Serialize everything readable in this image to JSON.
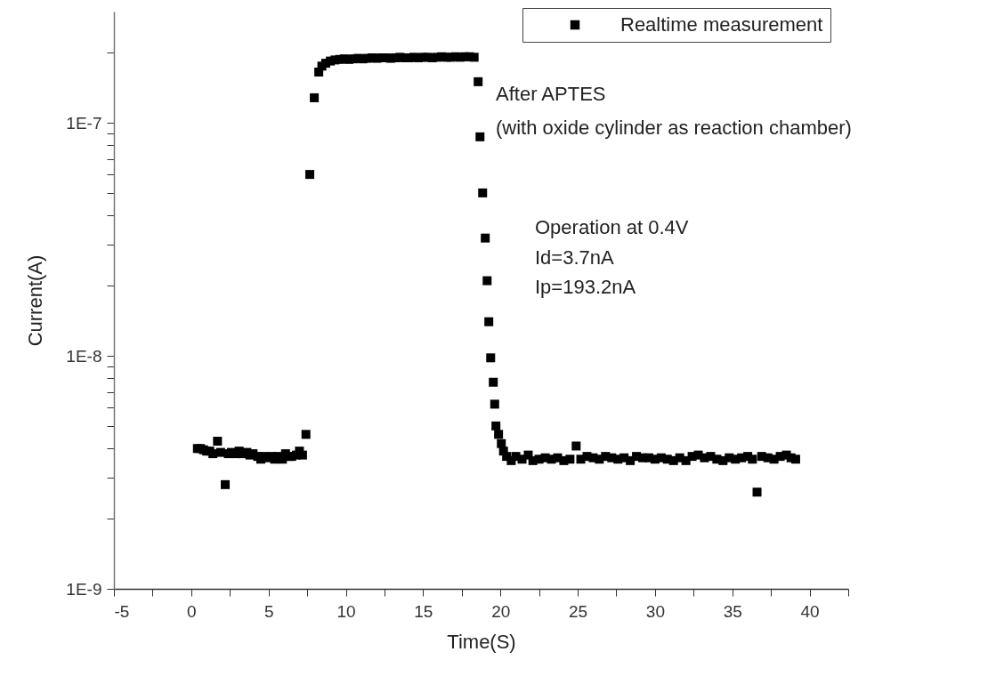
{
  "chart_data": {
    "type": "scatter",
    "xlabel": "Time(S)",
    "ylabel": "Current(A)",
    "log": "y",
    "grid": false,
    "legend": "top right",
    "marker": "square",
    "xlim": [
      -5,
      42.5
    ],
    "xticks": [
      -5,
      {
        "value": -2.5,
        "label": null
      },
      0,
      {
        "value": 2.5,
        "label": null
      },
      5,
      {
        "value": 7.5,
        "label": null
      },
      10,
      {
        "value": 12.5,
        "label": null
      },
      15,
      {
        "value": 17.5,
        "label": null
      },
      20,
      {
        "value": 22.5,
        "label": null
      },
      25,
      {
        "value": 27.5,
        "label": null
      },
      30,
      {
        "value": 32.5,
        "label": null
      },
      35,
      {
        "value": 37.5,
        "label": null
      },
      40,
      {
        "value": 42.5,
        "label": null
      }
    ],
    "ylim": [
      1e-09,
      3e-07
    ],
    "yticks": [
      {
        "value": 1e-09,
        "label": "1E-9"
      },
      {
        "value": 2e-09,
        "label": null
      },
      {
        "value": 3e-09,
        "label": null
      },
      {
        "value": 4e-09,
        "label": null
      },
      {
        "value": 5e-09,
        "label": null
      },
      {
        "value": 6e-09,
        "label": null
      },
      {
        "value": 7e-09,
        "label": null
      },
      {
        "value": 8e-09,
        "label": null
      },
      {
        "value": 9e-09,
        "label": null
      },
      {
        "value": 1e-08,
        "label": "1E-8"
      },
      {
        "value": 2e-08,
        "label": null
      },
      {
        "value": 3e-08,
        "label": null
      },
      {
        "value": 4e-08,
        "label": null
      },
      {
        "value": 5e-08,
        "label": null
      },
      {
        "value": 6e-08,
        "label": null
      },
      {
        "value": 7e-08,
        "label": null
      },
      {
        "value": 8e-08,
        "label": null
      },
      {
        "value": 9e-08,
        "label": null
      },
      {
        "value": 1e-07,
        "label": "1E-7"
      },
      {
        "value": 2e-07,
        "label": null
      }
    ],
    "annotations": [
      "After APTES",
      "(with oxide cylinder as reaction chamber)",
      "Operation at 0.4V",
      "Id=3.7nA",
      "Ip=193.2nA"
    ],
    "series": [
      {
        "name": "Realtime measurement",
        "color": "#000000",
        "x": [
          0.4,
          0.6,
          0.8,
          1.0,
          1.2,
          1.4,
          1.7,
          1.9,
          2.2,
          2.4,
          2.6,
          2.9,
          3.1,
          3.3,
          3.6,
          3.8,
          4.0,
          4.3,
          4.5,
          4.7,
          5.0,
          5.2,
          5.4,
          5.6,
          5.9,
          6.1,
          6.3,
          6.5,
          6.8,
          7.0,
          7.2,
          7.42,
          7.67,
          7.96,
          8.25,
          8.45,
          8.7,
          9.0,
          9.3,
          9.6,
          9.9,
          10.2,
          10.5,
          10.8,
          11.1,
          11.4,
          11.7,
          12.0,
          12.3,
          12.6,
          12.9,
          13.2,
          13.5,
          13.8,
          14.1,
          14.4,
          14.7,
          15.0,
          15.3,
          15.6,
          15.9,
          16.2,
          16.5,
          16.8,
          17.1,
          17.4,
          17.7,
          18.0,
          18.3,
          18.56,
          18.68,
          18.85,
          19.02,
          19.14,
          19.25,
          19.37,
          19.54,
          19.63,
          19.71,
          19.88,
          20.06,
          20.2,
          20.4,
          20.7,
          21.0,
          21.4,
          21.8,
          22.1,
          22.5,
          22.9,
          23.3,
          23.7,
          24.1,
          24.5,
          24.9,
          25.2,
          25.6,
          26.0,
          26.4,
          26.8,
          27.2,
          27.6,
          28.0,
          28.4,
          28.8,
          29.2,
          29.6,
          30.0,
          30.4,
          30.8,
          31.2,
          31.6,
          32.0,
          32.4,
          32.8,
          33.2,
          33.6,
          34.0,
          34.4,
          34.8,
          35.2,
          35.6,
          36.0,
          36.3,
          36.6,
          36.9,
          37.3,
          37.7,
          38.1,
          38.5,
          38.8,
          39.1
        ],
        "values": [
          4e-09,
          4e-09,
          3.95e-09,
          3.9e-09,
          3.9e-09,
          3.8e-09,
          4.3e-09,
          3.85e-09,
          2.8e-09,
          3.8e-09,
          3.85e-09,
          3.8e-09,
          3.9e-09,
          3.8e-09,
          3.85e-09,
          3.75e-09,
          3.8e-09,
          3.7e-09,
          3.6e-09,
          3.7e-09,
          3.65e-09,
          3.7e-09,
          3.6e-09,
          3.7e-09,
          3.6e-09,
          3.8e-09,
          3.7e-09,
          3.7e-09,
          3.75e-09,
          3.9e-09,
          3.75e-09,
          4.6e-09,
          6e-08,
          1.28e-07,
          1.65e-07,
          1.75e-07,
          1.8e-07,
          1.84e-07,
          1.86e-07,
          1.87e-07,
          1.88e-07,
          1.87e-07,
          1.88e-07,
          1.89e-07,
          1.88e-07,
          1.89e-07,
          1.9e-07,
          1.89e-07,
          1.9e-07,
          1.9e-07,
          1.89e-07,
          1.9e-07,
          1.91e-07,
          1.9e-07,
          1.9e-07,
          1.91e-07,
          1.9e-07,
          1.91e-07,
          1.91e-07,
          1.9e-07,
          1.91e-07,
          1.92e-07,
          1.91e-07,
          1.91e-07,
          1.92e-07,
          1.91e-07,
          1.92e-07,
          1.92e-07,
          1.91e-07,
          1.5e-07,
          8.7e-08,
          5e-08,
          3.2e-08,
          2.1e-08,
          1.4e-08,
          9.8e-09,
          7.7e-09,
          6.2e-09,
          5e-09,
          4.6e-09,
          4.2e-09,
          3.9e-09,
          3.7e-09,
          3.55e-09,
          3.7e-09,
          3.6e-09,
          3.75e-09,
          3.55e-09,
          3.6e-09,
          3.65e-09,
          3.6e-09,
          3.65e-09,
          3.55e-09,
          3.6e-09,
          4.1e-09,
          3.6e-09,
          3.7e-09,
          3.65e-09,
          3.6e-09,
          3.7e-09,
          3.65e-09,
          3.6e-09,
          3.65e-09,
          3.55e-09,
          3.7e-09,
          3.65e-09,
          3.65e-09,
          3.6e-09,
          3.65e-09,
          3.6e-09,
          3.55e-09,
          3.65e-09,
          3.55e-09,
          3.7e-09,
          3.75e-09,
          3.65e-09,
          3.7e-09,
          3.6e-09,
          3.55e-09,
          3.65e-09,
          3.6e-09,
          3.65e-09,
          3.7e-09,
          3.6e-09,
          2.6e-09,
          3.7e-09,
          3.65e-09,
          3.6e-09,
          3.7e-09,
          3.75e-09,
          3.65e-09,
          3.6e-09
        ]
      }
    ]
  }
}
